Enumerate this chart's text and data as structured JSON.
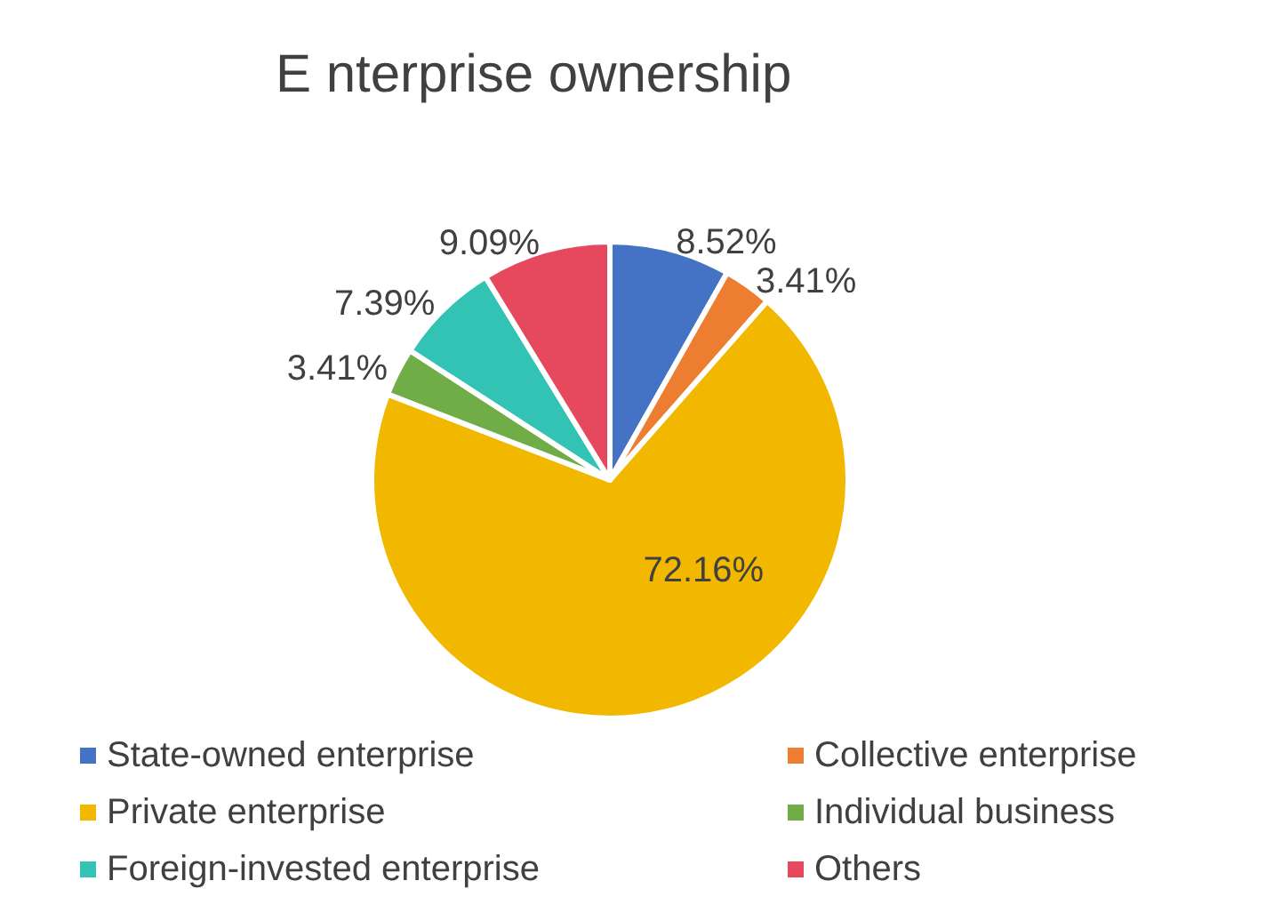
{
  "chart_data": {
    "type": "pie",
    "title": "E nterprise ownership",
    "categories": [
      "State-owned enterprise",
      "Collective enterprise",
      "Private enterprise",
      "Individual business",
      "Foreign-invested enterprise",
      "Others"
    ],
    "values": [
      8.52,
      3.41,
      72.16,
      3.41,
      7.39,
      9.09
    ],
    "colors": [
      "#4472c4",
      "#ed7d31",
      "#f2b800",
      "#70ad47",
      "#33c3b5",
      "#e6485e"
    ],
    "value_labels": [
      "8.52%",
      "3.41%",
      "72.16%",
      "3.41%",
      "7.39%",
      "9.09%"
    ],
    "legend": "bottom"
  }
}
